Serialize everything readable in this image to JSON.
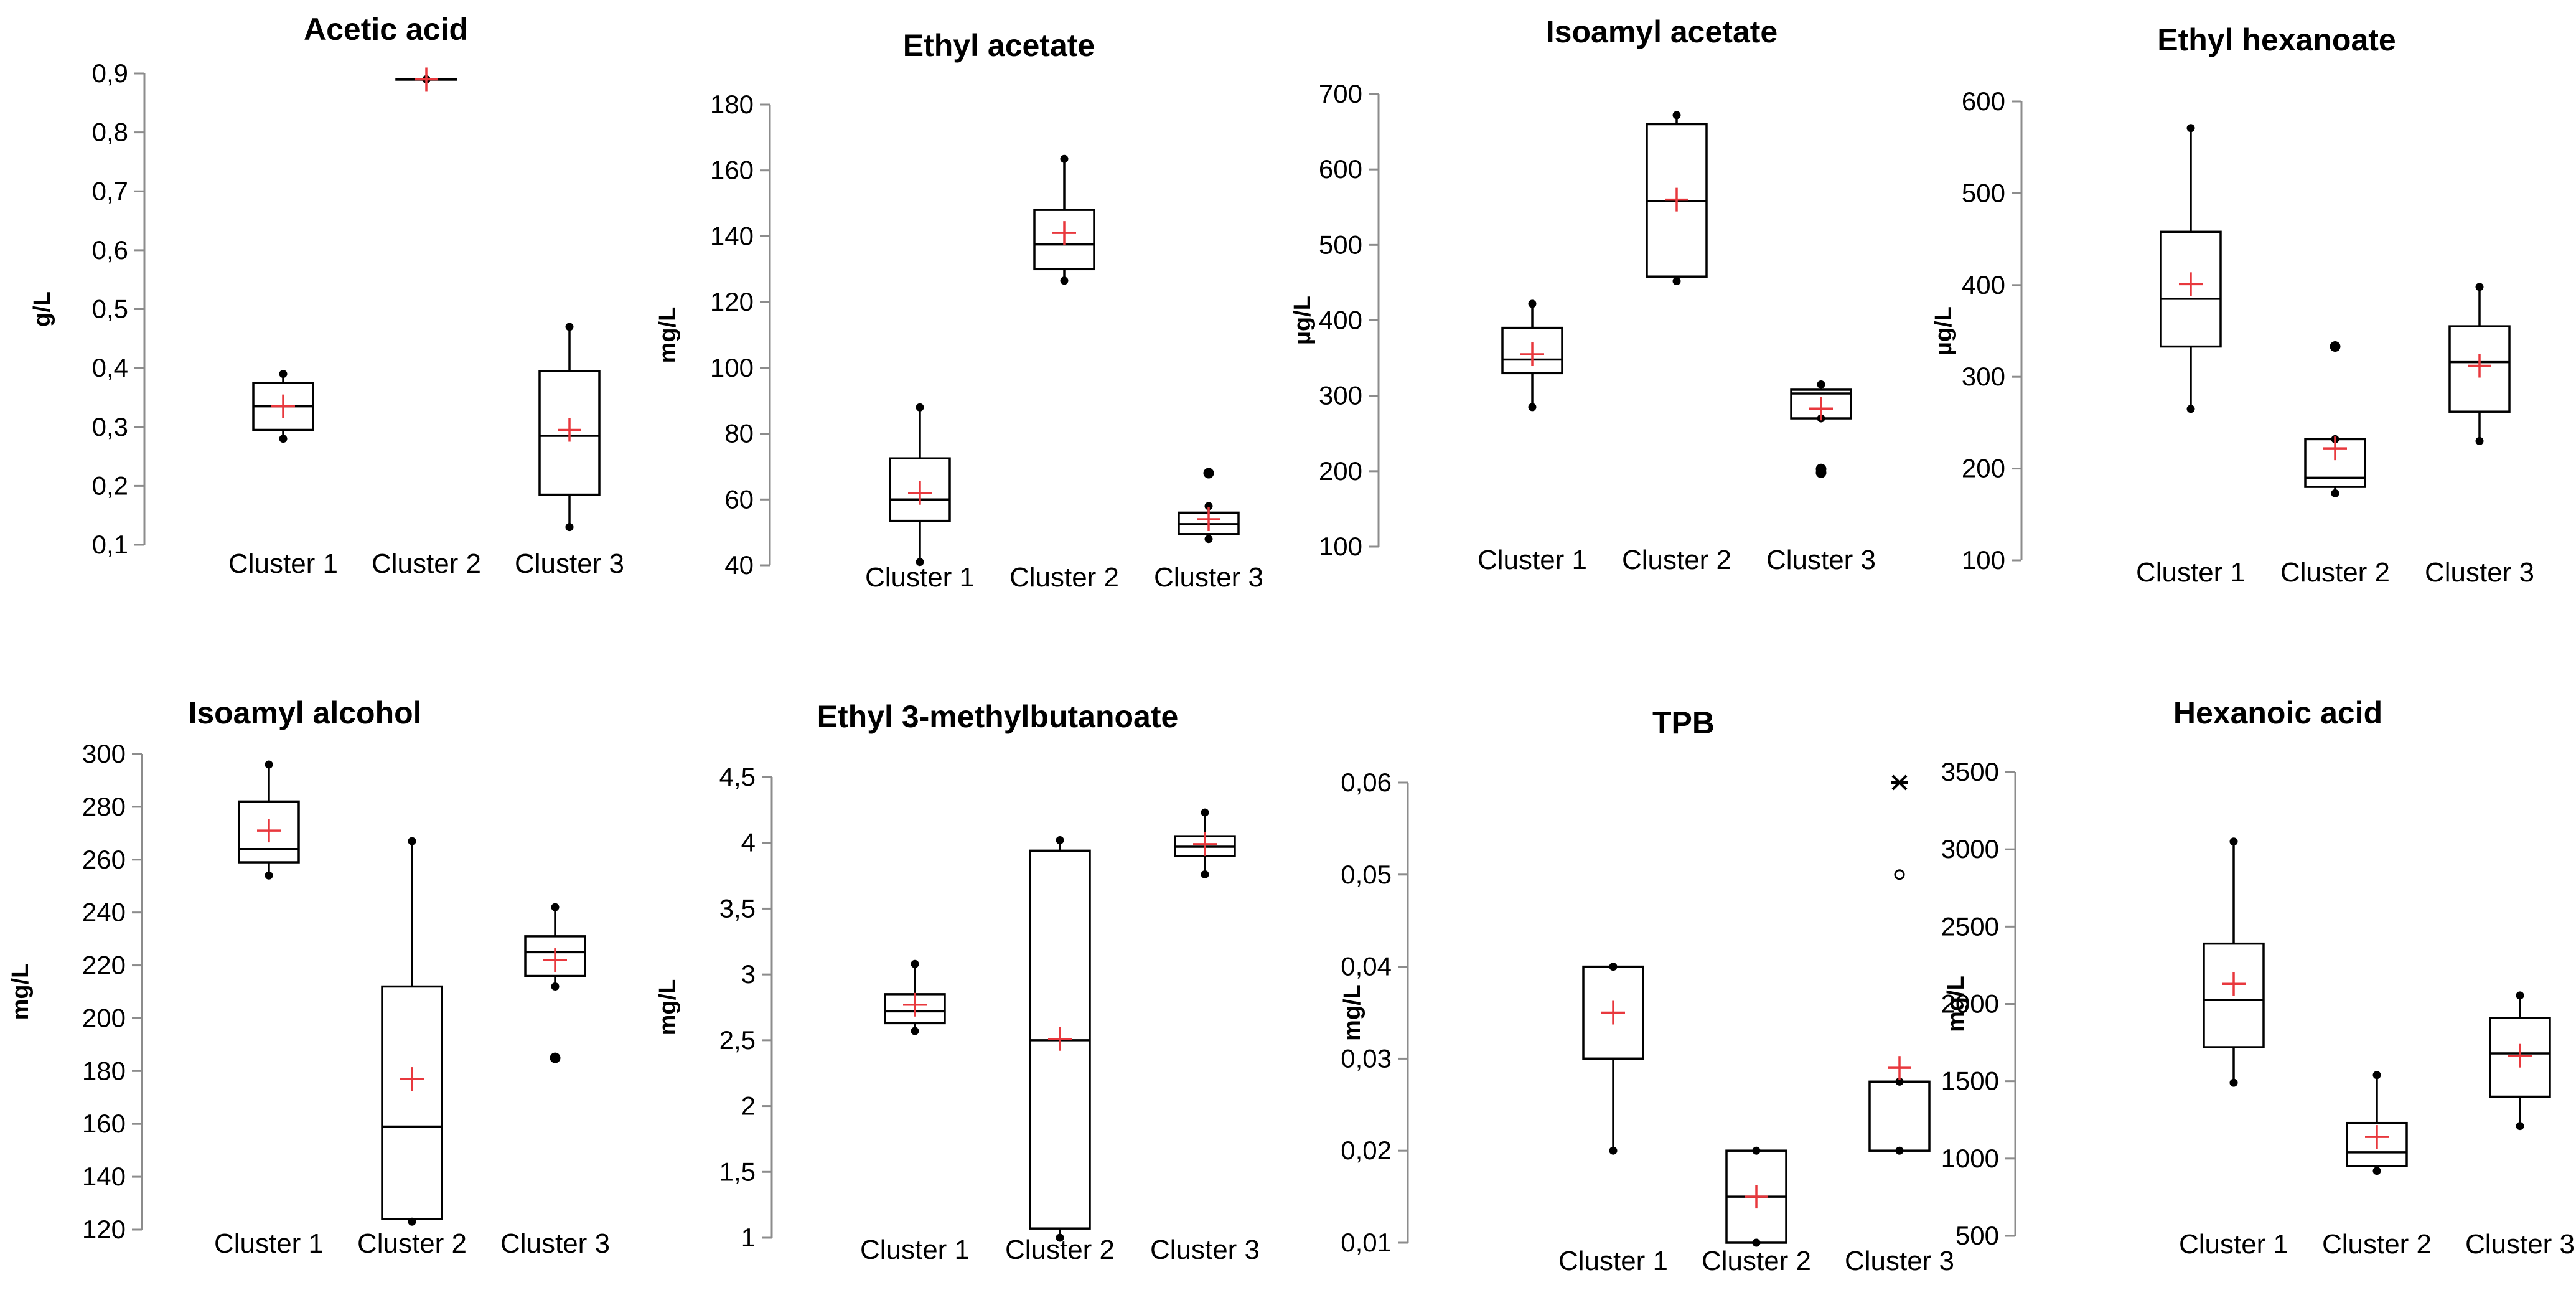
{
  "colors": {
    "mean_marker": "#e8383d",
    "box_stroke": "#000000",
    "axis": "#8c8c8c"
  },
  "chart_data": [
    {
      "type": "box",
      "title": "Acetic acid",
      "ylabel": "g/L",
      "ylim": [
        0.1,
        0.9
      ],
      "ticks": [
        0.1,
        0.2,
        0.3,
        0.4,
        0.5,
        0.6,
        0.7,
        0.8,
        0.9
      ],
      "tick_labels": [
        "0,1",
        "0,2",
        "0,3",
        "0,4",
        "0,5",
        "0,6",
        "0,7",
        "0,8",
        "0,9"
      ],
      "categories": [
        "Cluster 1",
        "Cluster 2",
        "Cluster 3"
      ],
      "boxes": [
        {
          "min": 0.28,
          "q1": 0.295,
          "median": 0.335,
          "q3": 0.375,
          "max": 0.39,
          "mean": 0.335,
          "outliers": []
        },
        {
          "min": 0.89,
          "q1": 0.89,
          "median": 0.89,
          "q3": 0.89,
          "max": 0.89,
          "mean": 0.89,
          "outliers": []
        },
        {
          "min": 0.13,
          "q1": 0.185,
          "median": 0.285,
          "q3": 0.395,
          "max": 0.47,
          "mean": 0.295,
          "outliers": []
        }
      ]
    },
    {
      "type": "box",
      "title": "Ethyl acetate",
      "ylabel": "mg/L",
      "ylim": [
        40,
        180
      ],
      "ticks": [
        40,
        60,
        80,
        100,
        120,
        140,
        160,
        180
      ],
      "tick_labels": [
        "40",
        "60",
        "80",
        "100",
        "120",
        "140",
        "160",
        "180"
      ],
      "categories": [
        "Cluster 1",
        "Cluster 2",
        "Cluster 3"
      ],
      "boxes": [
        {
          "min": 41,
          "q1": 53.5,
          "median": 60,
          "q3": 72.5,
          "max": 88,
          "mean": 62,
          "outliers": []
        },
        {
          "min": 126.5,
          "q1": 130,
          "median": 137.5,
          "q3": 148,
          "max": 163.5,
          "mean": 141,
          "outliers": []
        },
        {
          "min": 48,
          "q1": 49.5,
          "median": 52.5,
          "q3": 56,
          "max": 58,
          "mean": 54,
          "outliers": [
            68
          ]
        }
      ]
    },
    {
      "type": "box",
      "title": "Isoamyl acetate",
      "ylabel": "µg/L",
      "ylim": [
        100,
        700
      ],
      "ticks": [
        100,
        200,
        300,
        400,
        500,
        600,
        700
      ],
      "tick_labels": [
        "100",
        "200",
        "300",
        "400",
        "500",
        "600",
        "700"
      ],
      "categories": [
        "Cluster 1",
        "Cluster 2",
        "Cluster 3"
      ],
      "boxes": [
        {
          "min": 285,
          "q1": 330,
          "median": 348,
          "q3": 390,
          "max": 422,
          "mean": 355,
          "outliers": []
        },
        {
          "min": 452,
          "q1": 458,
          "median": 558,
          "q3": 660,
          "max": 672,
          "mean": 560,
          "outliers": []
        },
        {
          "min": 270,
          "q1": 270,
          "median": 303,
          "q3": 308,
          "max": 315,
          "mean": 283,
          "outliers": [
            198,
            203
          ]
        }
      ]
    },
    {
      "type": "box",
      "title": "Ethyl hexanoate",
      "ylabel": "µg/L",
      "ylim": [
        100,
        600
      ],
      "ticks": [
        100,
        200,
        300,
        400,
        500,
        600
      ],
      "tick_labels": [
        "100",
        "200",
        "300",
        "400",
        "500",
        "600"
      ],
      "categories": [
        "Cluster 1",
        "Cluster 2",
        "Cluster 3"
      ],
      "boxes": [
        {
          "min": 265,
          "q1": 333,
          "median": 385,
          "q3": 458,
          "max": 571,
          "mean": 401,
          "outliers": []
        },
        {
          "min": 173,
          "q1": 180,
          "median": 190,
          "q3": 232,
          "max": 232,
          "mean": 222,
          "outliers": [
            333
          ]
        },
        {
          "min": 230,
          "q1": 262,
          "median": 316,
          "q3": 355,
          "max": 398,
          "mean": 312,
          "outliers": []
        }
      ]
    },
    {
      "type": "box",
      "title": "Isoamyl alcohol",
      "ylabel": "mg/L",
      "ylim": [
        120,
        300
      ],
      "ticks": [
        120,
        140,
        160,
        180,
        200,
        220,
        240,
        260,
        280,
        300
      ],
      "tick_labels": [
        "120",
        "140",
        "160",
        "180",
        "200",
        "220",
        "240",
        "260",
        "280",
        "300"
      ],
      "categories": [
        "Cluster 1",
        "Cluster 2",
        "Cluster 3"
      ],
      "boxes": [
        {
          "min": 254,
          "q1": 259,
          "median": 264,
          "q3": 282,
          "max": 296,
          "mean": 271,
          "outliers": []
        },
        {
          "min": 123,
          "q1": 124,
          "median": 159,
          "q3": 212,
          "max": 267,
          "mean": 177,
          "outliers": []
        },
        {
          "min": 212,
          "q1": 216,
          "median": 225,
          "q3": 231,
          "max": 242,
          "mean": 222,
          "outliers": [
            185
          ]
        }
      ]
    },
    {
      "type": "box",
      "title": "Ethyl 3-methylbutanoate",
      "ylabel": "mg/L",
      "ylim": [
        1,
        4.5
      ],
      "ticks": [
        1,
        1.5,
        2,
        2.5,
        3,
        3.5,
        4,
        4.5
      ],
      "tick_labels": [
        "1",
        "1,5",
        "2",
        "2,5",
        "3",
        "3,5",
        "4",
        "4,5"
      ],
      "categories": [
        "Cluster 1",
        "Cluster 2",
        "Cluster 3"
      ],
      "boxes": [
        {
          "min": 2.57,
          "q1": 2.63,
          "median": 2.72,
          "q3": 2.85,
          "max": 3.08,
          "mean": 2.77,
          "outliers": []
        },
        {
          "min": 1.0,
          "q1": 1.07,
          "median": 2.5,
          "q3": 3.94,
          "max": 4.02,
          "mean": 2.51,
          "outliers": []
        },
        {
          "min": 3.76,
          "q1": 3.9,
          "median": 3.97,
          "q3": 4.05,
          "max": 4.23,
          "mean": 3.99,
          "outliers": []
        }
      ]
    },
    {
      "type": "box",
      "title": "TPB",
      "ylabel": "mg/L",
      "ylim": [
        0.01,
        0.06
      ],
      "ticks": [
        0.01,
        0.02,
        0.03,
        0.04,
        0.05,
        0.06
      ],
      "tick_labels": [
        "0,01",
        "0,02",
        "0,03",
        "0,04",
        "0,05",
        "0,06"
      ],
      "categories": [
        "Cluster 1",
        "Cluster 2",
        "Cluster 3"
      ],
      "boxes": [
        {
          "min": 0.02,
          "q1": 0.03,
          "median": 0.03,
          "q3": 0.04,
          "max": 0.04,
          "mean": 0.035,
          "outliers": []
        },
        {
          "min": 0.01,
          "q1": 0.01,
          "median": 0.015,
          "q3": 0.02,
          "max": 0.02,
          "mean": 0.015,
          "outliers": []
        },
        {
          "min": 0.02,
          "q1": 0.02,
          "median": 0.0275,
          "q3": 0.0275,
          "max": 0.0275,
          "mean": 0.029,
          "outliers": [
            0.05
          ],
          "extremes": [
            0.06
          ]
        }
      ]
    },
    {
      "type": "box",
      "title": "Hexanoic acid",
      "ylabel": "mg/L",
      "ylim": [
        500,
        3500
      ],
      "ticks": [
        500,
        1000,
        1500,
        2000,
        2500,
        3000,
        3500
      ],
      "tick_labels": [
        "500",
        "1000",
        "1500",
        "2000",
        "2500",
        "3000",
        "3500"
      ],
      "categories": [
        "Cluster 1",
        "Cluster 2",
        "Cluster 3"
      ],
      "boxes": [
        {
          "min": 1490,
          "q1": 1720,
          "median": 2025,
          "q3": 2390,
          "max": 3050,
          "mean": 2130,
          "outliers": []
        },
        {
          "min": 920,
          "q1": 950,
          "median": 1040,
          "q3": 1230,
          "max": 1540,
          "mean": 1140,
          "outliers": []
        },
        {
          "min": 1210,
          "q1": 1400,
          "median": 1680,
          "q3": 1910,
          "max": 2055,
          "mean": 1665,
          "outliers": []
        }
      ]
    }
  ]
}
